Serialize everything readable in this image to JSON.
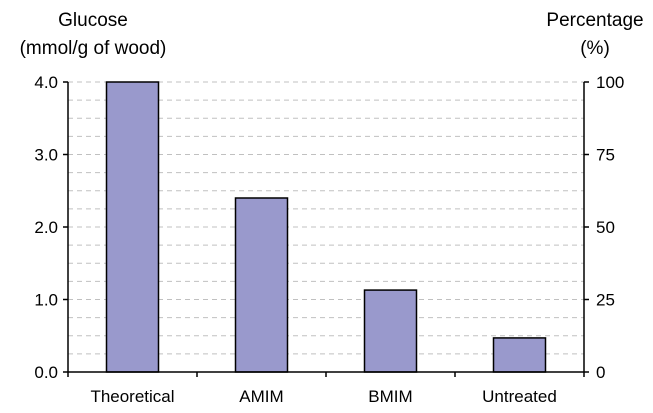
{
  "chart_data": {
    "type": "bar",
    "categories": [
      "Theoretical",
      "AMIM",
      "BMIM",
      "Untreated"
    ],
    "values": [
      4.0,
      2.4,
      1.13,
      0.47
    ],
    "ylabel_left_lines": [
      "Glucose",
      "(mmol/g of wood)"
    ],
    "ylabel_right_lines": [
      "Percentage",
      "(%)"
    ],
    "ylim_left": [
      0,
      4
    ],
    "ylim_right": [
      0,
      100
    ],
    "left_ticks": [
      {
        "value": 0,
        "label": "0.0"
      },
      {
        "value": 1,
        "label": "1.0"
      },
      {
        "value": 2,
        "label": "2.0"
      },
      {
        "value": 3,
        "label": "3.0"
      },
      {
        "value": 4,
        "label": "4.0"
      }
    ],
    "right_ticks": [
      {
        "value": 0,
        "label": "0"
      },
      {
        "value": 25,
        "label": "25"
      },
      {
        "value": 50,
        "label": "50"
      },
      {
        "value": 75,
        "label": "75"
      },
      {
        "value": 100,
        "label": "100"
      }
    ],
    "grid": "dashed horizontal",
    "legend": "none",
    "colors": {
      "bar_fill": "#9999cc",
      "bar_stroke": "#000000",
      "grid": "#c0c0c0",
      "axis": "#000000"
    }
  }
}
